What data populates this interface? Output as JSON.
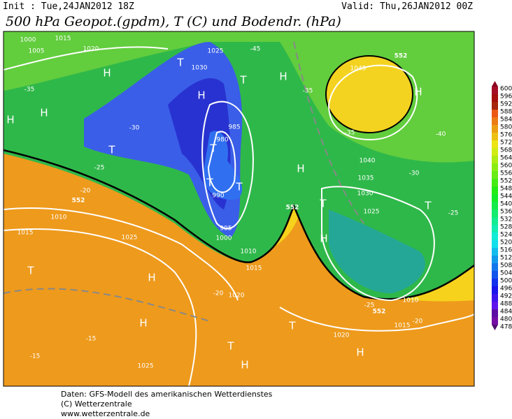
{
  "header": {
    "init": "Init : Tue,24JAN2012 18Z",
    "valid": "Valid: Thu,26JAN2012 00Z",
    "title": "500 hPa Geopot.(gpdm), T (C) und Bodendr. (hPa)"
  },
  "colorbar": {
    "ticks": [
      600,
      596,
      592,
      588,
      584,
      580,
      576,
      572,
      568,
      564,
      560,
      556,
      552,
      548,
      544,
      540,
      536,
      532,
      528,
      524,
      520,
      516,
      512,
      508,
      504,
      500,
      496,
      492,
      488,
      484,
      480,
      478
    ]
  },
  "map_labels": [
    "H",
    "H",
    "H",
    "H",
    "H",
    "H",
    "H",
    "H",
    "H",
    "H",
    "H",
    "H",
    "T",
    "T",
    "T",
    "T",
    "T",
    "T",
    "T",
    "T",
    "T",
    "T",
    "T",
    "1015",
    "1000",
    "1005",
    "1020",
    "1025",
    "1030",
    "1045",
    "1040",
    "1035",
    "1030",
    "1025",
    "980",
    "985",
    "990",
    "995",
    "1000",
    "1010",
    "1015",
    "1020",
    "1025",
    "1010",
    "1015",
    "1010",
    "1015",
    "1020",
    "1025",
    "-35",
    "-30",
    "-25",
    "-20",
    "-15",
    "-15",
    "-20",
    "-25",
    "-35",
    "-40",
    "-30",
    "-25",
    "-20",
    "-35",
    "-45",
    "552",
    "552",
    "552",
    "552"
  ],
  "footer": [
    "Daten: GFS-Modell des amerikanischen Wetterdienstes",
    "(C) Wetterzentrale",
    "www.wetterzentrale.de"
  ]
}
